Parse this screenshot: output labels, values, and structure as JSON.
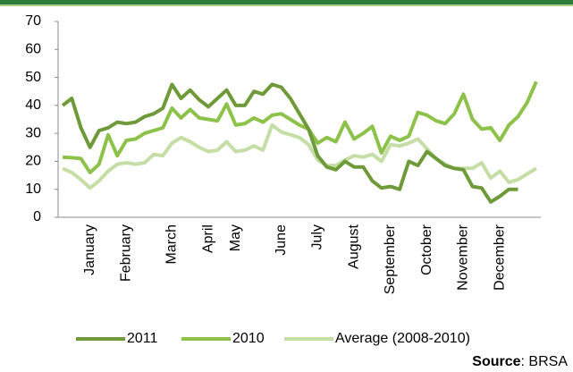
{
  "chart_data": {
    "type": "line",
    "categories": [
      null,
      null,
      null,
      "January",
      null,
      null,
      null,
      "February",
      null,
      null,
      null,
      null,
      "March",
      null,
      null,
      null,
      "April",
      null,
      null,
      "May",
      null,
      null,
      null,
      null,
      "June",
      null,
      null,
      null,
      "July",
      null,
      null,
      null,
      "August",
      null,
      null,
      null,
      "September",
      null,
      null,
      null,
      "October",
      null,
      null,
      null,
      "November",
      null,
      null,
      null,
      "December",
      null,
      null,
      null,
      null
    ],
    "series": [
      {
        "name": "2011",
        "color": "#6e9a3a",
        "values": [
          40,
          42.5,
          32,
          25,
          31,
          32,
          34,
          33.5,
          34,
          36,
          37,
          39,
          47.5,
          42.5,
          45.5,
          42,
          39.5,
          42.5,
          45.5,
          40,
          40,
          45,
          44,
          47.5,
          46.5,
          42.5,
          37,
          31.5,
          22,
          18,
          17,
          20,
          18,
          18,
          13,
          10.5,
          11,
          10,
          20,
          18.5,
          23.5,
          21,
          18.5,
          17.5,
          17,
          11,
          10.5,
          5.5,
          7.5,
          10,
          10,
          null,
          null
        ]
      },
      {
        "name": "2010",
        "color": "#8dc24a",
        "values": [
          21.5,
          21.3,
          21,
          16,
          19,
          29.5,
          22,
          27.5,
          28,
          30,
          31,
          32,
          39,
          35.5,
          38.5,
          35.5,
          35,
          34.5,
          40.5,
          33,
          33.5,
          35.5,
          34,
          36.5,
          37,
          35,
          33,
          31.5,
          26.5,
          28.5,
          27,
          34,
          28,
          30,
          32.5,
          23,
          29,
          27.5,
          29,
          37.5,
          36.5,
          34.5,
          33.5,
          37,
          44,
          35,
          31.5,
          32,
          27.5,
          33,
          36,
          41,
          48.5
        ]
      },
      {
        "name": "Average (2008-2010)",
        "color": "#c5dea6",
        "values": [
          17.5,
          16,
          13.5,
          10.5,
          13,
          16.5,
          19,
          19.5,
          19,
          19.5,
          22.5,
          22,
          26.5,
          28.5,
          27,
          25,
          23.5,
          24,
          27,
          23.5,
          24,
          25.5,
          24,
          33,
          30.5,
          29.5,
          28.5,
          26,
          20.5,
          18.5,
          18.5,
          20.5,
          22,
          21.5,
          22.5,
          20,
          26,
          25.5,
          26.5,
          28,
          24.5,
          21,
          19,
          17.5,
          17.5,
          17.5,
          19.5,
          14,
          16.5,
          12.5,
          13.5,
          15.5,
          17.5
        ]
      }
    ],
    "ylim": [
      0,
      70
    ],
    "yticks": [
      0,
      10,
      20,
      30,
      40,
      50,
      60,
      70
    ],
    "legend": "bottom",
    "source_label": "Source",
    "source": ": BRSA"
  }
}
